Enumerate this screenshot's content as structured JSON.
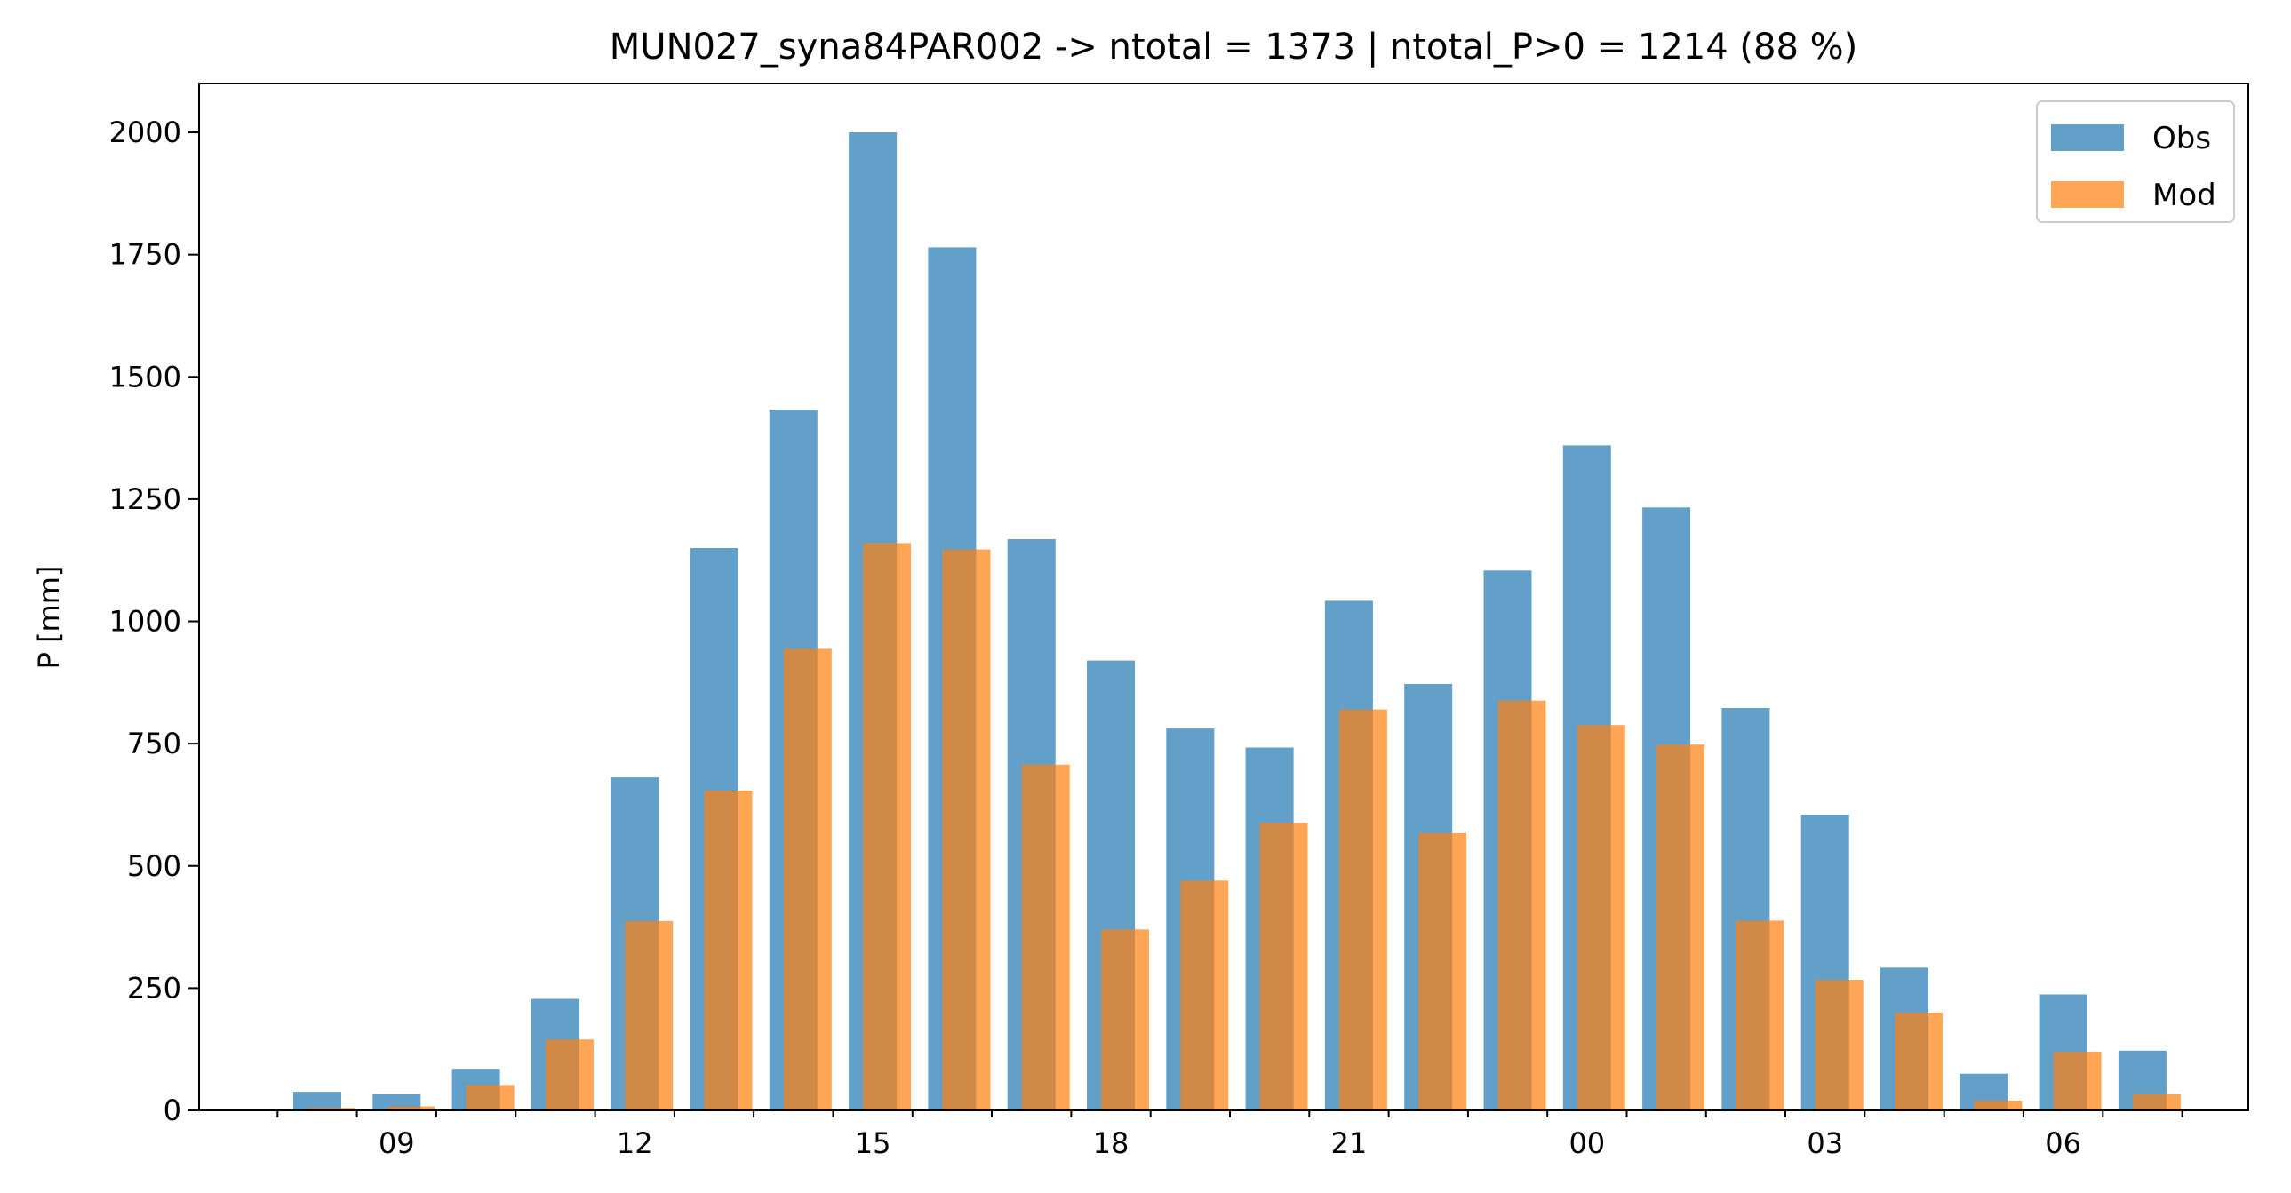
{
  "chart_data": {
    "type": "bar",
    "title": "MUN027_syna84PAR002 -> ntotal = 1373 | ntotal_P>0 = 1214 (88 %)",
    "xlabel": "",
    "ylabel": "P [mm]",
    "ylim": [
      0,
      2100
    ],
    "yticks": [
      0,
      250,
      500,
      750,
      1000,
      1250,
      1500,
      1750,
      2000
    ],
    "hours": [
      8,
      9,
      10,
      11,
      12,
      13,
      14,
      15,
      16,
      17,
      18,
      19,
      20,
      21,
      22,
      23,
      0,
      1,
      2,
      3,
      4,
      5,
      6,
      7
    ],
    "xtick_labels": [
      "09",
      "12",
      "15",
      "18",
      "21",
      "00",
      "03",
      "06"
    ],
    "xtick_label_hours": [
      9,
      12,
      15,
      18,
      21,
      0,
      3,
      6
    ],
    "series": [
      {
        "name": "Obs",
        "color": "#1f77b4",
        "values": [
          38,
          33,
          85,
          228,
          681,
          1150,
          1433,
          2000,
          1765,
          1168,
          920,
          781,
          742,
          1042,
          872,
          1104,
          1360,
          1233,
          823,
          605,
          292,
          75,
          237,
          122
        ]
      },
      {
        "name": "Mod",
        "color": "#ff7f0e",
        "values": [
          5,
          8,
          52,
          145,
          387,
          654,
          944,
          1160,
          1147,
          707,
          370,
          470,
          588,
          820,
          567,
          838,
          788,
          748,
          388,
          267,
          200,
          20,
          120,
          33
        ]
      }
    ],
    "legend_position": "top-right",
    "grid": false
  }
}
